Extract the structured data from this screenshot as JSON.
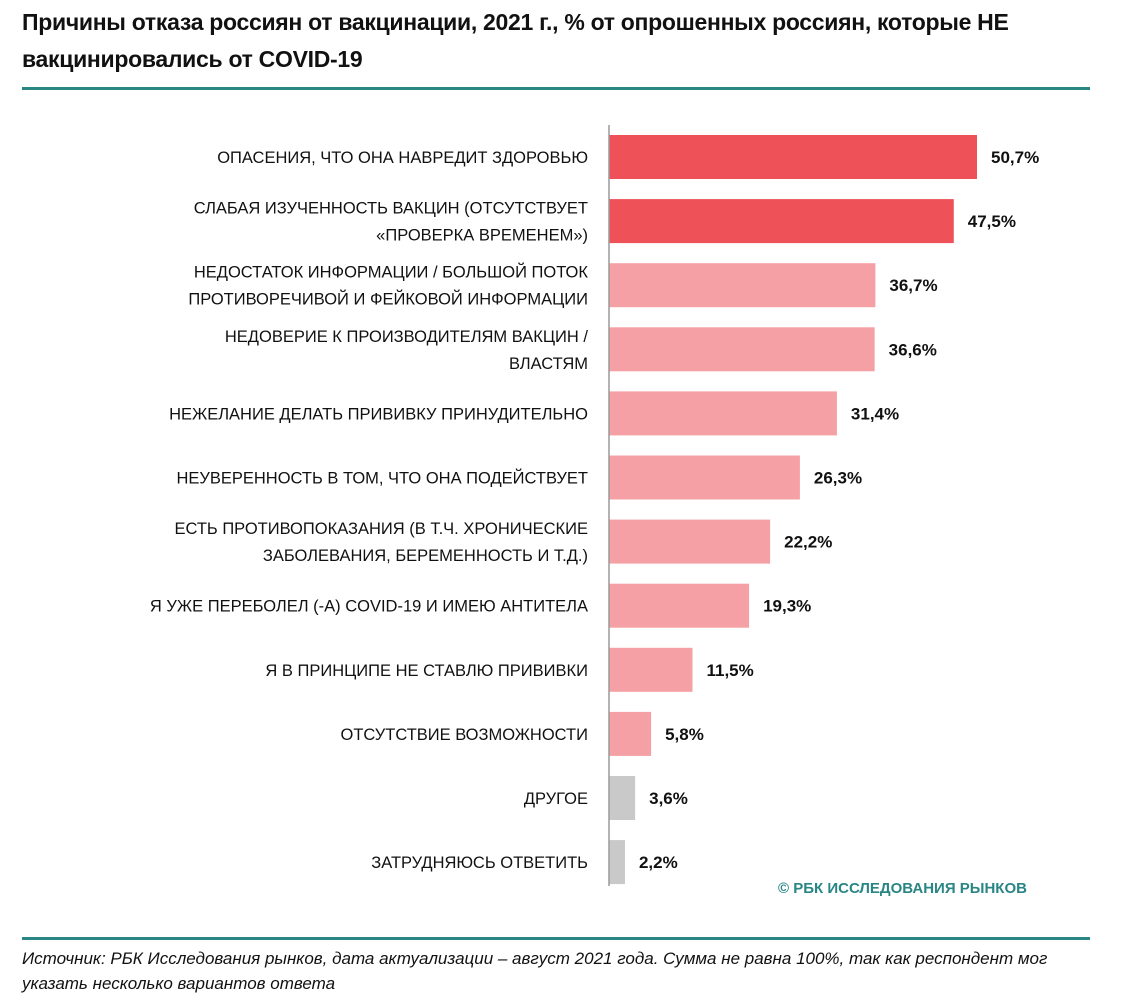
{
  "chart_data": {
    "type": "bar",
    "orientation": "horizontal",
    "title": "Причины отказа россиян от вакцинации, 2021 г., % от опрошенных россиян, которые НЕ вакцинировались от COVID-19",
    "categories": [
      [
        "ОПАСЕНИЯ, ЧТО ОНА НАВРЕДИТ ЗДОРОВЬЮ"
      ],
      [
        "СЛАБАЯ ИЗУЧЕННОСТЬ ВАКЦИН (ОТСУТСТВУЕТ",
        "«ПРОВЕРКА ВРЕМЕНЕМ»)"
      ],
      [
        "НЕДОСТАТОК ИНФОРМАЦИИ / БОЛЬШОЙ ПОТОК",
        "ПРОТИВОРЕЧИВОЙ И ФЕЙКОВОЙ ИНФОРМАЦИИ"
      ],
      [
        "НЕДОВЕРИЕ К ПРОИЗВОДИТЕЛЯМ ВАКЦИН /",
        "ВЛАСТЯМ"
      ],
      [
        "НЕЖЕЛАНИЕ ДЕЛАТЬ ПРИВИВКУ ПРИНУДИТЕЛЬНО"
      ],
      [
        "НЕУВЕРЕННОСТЬ В ТОМ, ЧТО ОНА ПОДЕЙСТВУЕТ"
      ],
      [
        "ЕСТЬ ПРОТИВОПОКАЗАНИЯ (В Т.Ч. ХРОНИЧЕСКИЕ",
        "ЗАБОЛЕВАНИЯ, БЕРЕМЕННОСТЬ И Т.Д.)"
      ],
      [
        "Я УЖЕ ПЕРЕБОЛЕЛ (-А) COVID-19 И ИМЕЮ АНТИТЕЛА"
      ],
      [
        "Я В ПРИНЦИПЕ НЕ СТАВЛЮ ПРИВИВКИ"
      ],
      [
        "ОТСУТСТВИЕ ВОЗМОЖНОСТИ"
      ],
      [
        "ДРУГОЕ"
      ],
      [
        "ЗАТРУДНЯЮСЬ ОТВЕТИТЬ"
      ]
    ],
    "values": [
      50.7,
      47.5,
      36.7,
      36.6,
      31.4,
      26.3,
      22.2,
      19.3,
      11.5,
      5.8,
      3.6,
      2.2
    ],
    "value_labels": [
      "50,7%",
      "47,5%",
      "36,7%",
      "36,6%",
      "31,4%",
      "26,3%",
      "22,2%",
      "19,3%",
      "11,5%",
      "5,8%",
      "3,6%",
      "2,2%"
    ],
    "bar_color_groups": [
      "top",
      "top",
      "main",
      "main",
      "main",
      "main",
      "main",
      "main",
      "main",
      "main",
      "other",
      "other"
    ],
    "colors": {
      "top": "#ee5158",
      "main": "#f5a0a4",
      "other": "#c9c9c9",
      "accent": "#2a8585"
    },
    "xlim": [
      0,
      55
    ],
    "grid": false,
    "xlabel": "",
    "ylabel": ""
  },
  "copyright": "© РБК ИССЛЕДОВАНИЯ РЫНКОВ",
  "source": "Источник: РБК Исследования рынков, дата актуализации – август 2021 года. Сумма не равна 100%, так как респондент мог указать несколько вариантов ответа"
}
